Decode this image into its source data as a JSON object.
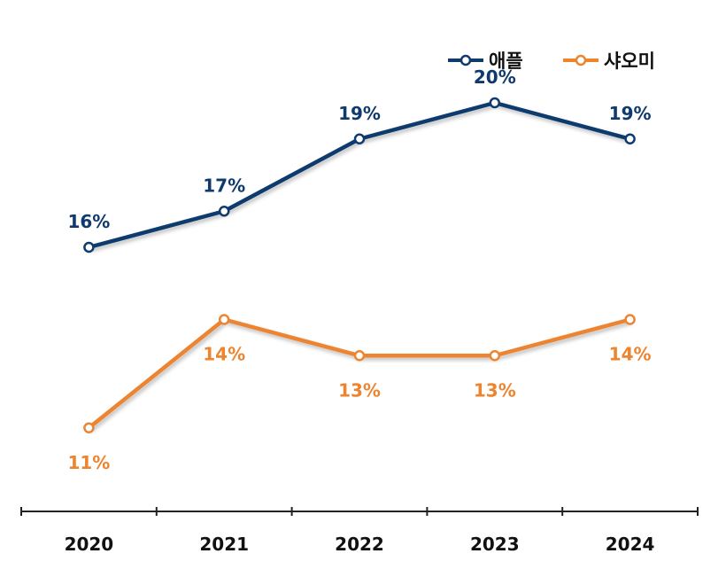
{
  "chart_data": {
    "type": "line",
    "title": "",
    "xlabel": "",
    "ylabel": "",
    "categories": [
      "2020",
      "2021",
      "2022",
      "2023",
      "2024"
    ],
    "series": [
      {
        "name": "애플",
        "values": [
          16,
          17,
          19,
          20,
          19
        ],
        "labels": [
          "16%",
          "17%",
          "19%",
          "20%",
          "19%"
        ],
        "color": "#0f3a6e"
      },
      {
        "name": "샤오미",
        "values": [
          11,
          14,
          13,
          13,
          14
        ],
        "labels": [
          "11%",
          "14%",
          "13%",
          "13%",
          "14%"
        ],
        "color": "#ec8430"
      }
    ],
    "grid": false,
    "legend_position": "top-right"
  }
}
